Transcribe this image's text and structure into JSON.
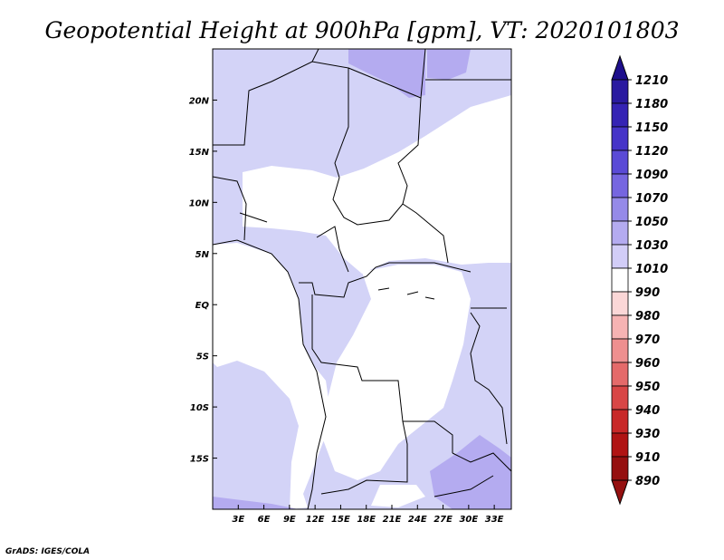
{
  "title": "Geopotential Height at 900hPa [gpm], VT: 2020101803",
  "credit": "GrADS: IGES/COLA",
  "map": {
    "lon_range": [
      0,
      35
    ],
    "lat_range": [
      -20,
      25
    ],
    "x_ticks": [
      "3E",
      "6E",
      "9E",
      "12E",
      "15E",
      "18E",
      "21E",
      "24E",
      "27E",
      "30E",
      "33E"
    ],
    "x_tick_values": [
      3,
      6,
      9,
      12,
      15,
      18,
      21,
      24,
      27,
      30,
      33
    ],
    "y_ticks": [
      "20N",
      "15N",
      "10N",
      "5N",
      "EQ",
      "5S",
      "10S",
      "15S"
    ],
    "y_tick_values": [
      20,
      15,
      10,
      5,
      0,
      -5,
      -10,
      -15
    ]
  },
  "colorbar": {
    "levels": [
      "1210",
      "1180",
      "1150",
      "1120",
      "1090",
      "1070",
      "1050",
      "1030",
      "1010",
      "990",
      "980",
      "970",
      "960",
      "950",
      "940",
      "930",
      "910",
      "890"
    ],
    "colors": [
      "#1e0f8c",
      "#2a1aa0",
      "#3523b4",
      "#4634c8",
      "#5a4ad6",
      "#7666e0",
      "#958ae8",
      "#b4abf0",
      "#d2cdf7",
      "#ffffff",
      "#fbd7d7",
      "#f6b3b3",
      "#ee8f8f",
      "#e46a6a",
      "#d84646",
      "#c82828",
      "#b01414",
      "#951010"
    ]
  }
}
